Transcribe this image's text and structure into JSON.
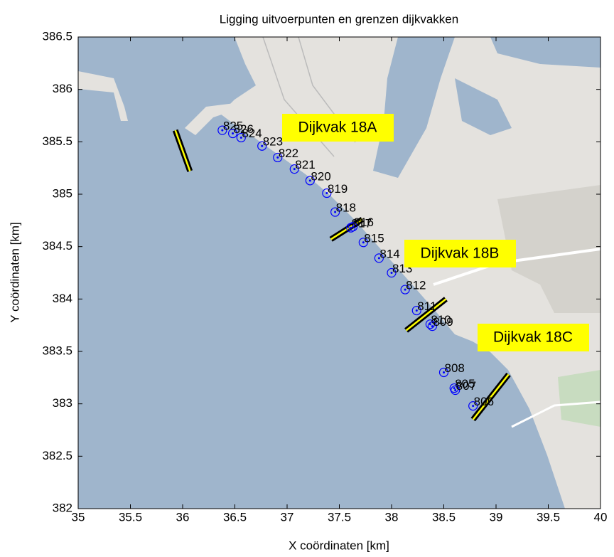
{
  "chart_data": {
    "type": "scatter",
    "title": "Ligging uitvoerpunten en grenzen dijkvakken",
    "x_label": "X coördinaten [km]",
    "y_label": "Y coördinaten [km]",
    "xlim": [
      35,
      40
    ],
    "ylim": [
      382,
      386.5
    ],
    "xticks": [
      35,
      35.5,
      36,
      36.5,
      37,
      37.5,
      38,
      38.5,
      39,
      39.5,
      40
    ],
    "yticks": [
      382,
      382.5,
      383,
      383.5,
      384,
      384.5,
      385,
      385.5,
      386,
      386.5
    ],
    "points": {
      "color": "#0000ff",
      "labels": [
        "825",
        "826",
        "824",
        "823",
        "822",
        "821",
        "820",
        "819",
        "818",
        "817",
        "816",
        "815",
        "814",
        "813",
        "812",
        "811",
        "810",
        "809",
        "808",
        "805",
        "807",
        "806"
      ],
      "x": [
        36.38,
        36.48,
        36.56,
        36.76,
        36.91,
        37.07,
        37.22,
        37.38,
        37.46,
        37.61,
        37.63,
        37.73,
        37.88,
        38.0,
        38.13,
        38.24,
        38.37,
        38.39,
        38.5,
        38.6,
        38.61,
        38.78
      ],
      "y": [
        385.61,
        385.58,
        385.54,
        385.46,
        385.35,
        385.24,
        385.13,
        385.01,
        384.83,
        384.68,
        384.69,
        384.54,
        384.39,
        384.25,
        384.09,
        383.89,
        383.76,
        383.74,
        383.3,
        383.15,
        383.13,
        382.98
      ]
    },
    "boundaries": [
      {
        "x": [
          35.93,
          36.07
        ],
        "y": [
          385.61,
          385.22
        ]
      },
      {
        "x": [
          37.42,
          37.72
        ],
        "y": [
          384.57,
          384.76
        ]
      },
      {
        "x": [
          38.14,
          38.52
        ],
        "y": [
          383.7,
          384.0
        ]
      },
      {
        "x": [
          38.78,
          39.12
        ],
        "y": [
          382.85,
          383.28
        ]
      }
    ],
    "annotations": [
      "Dijkvak 18A",
      "Dijkvak 18B",
      "Dijkvak 18C"
    ]
  }
}
